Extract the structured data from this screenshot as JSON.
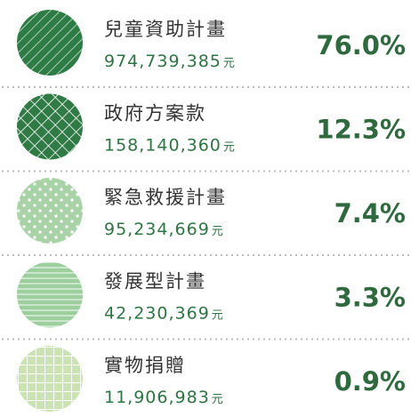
{
  "items": [
    {
      "name": "兒童資助計畫",
      "amount": "974,739,385",
      "unit": "元",
      "percent": "76.0%"
    },
    {
      "name": "政府方案款",
      "amount": "158,140,360",
      "unit": "元",
      "percent": "12.3%"
    },
    {
      "name": "緊急救援計畫",
      "amount": "95,234,669",
      "unit": "元",
      "percent": "7.4%"
    },
    {
      "name": "發展型計畫",
      "amount": "42,230,369",
      "unit": "元",
      "percent": "3.3%"
    },
    {
      "name": "實物捐贈",
      "amount": "11,906,983",
      "unit": "元",
      "percent": "0.9%"
    }
  ]
}
